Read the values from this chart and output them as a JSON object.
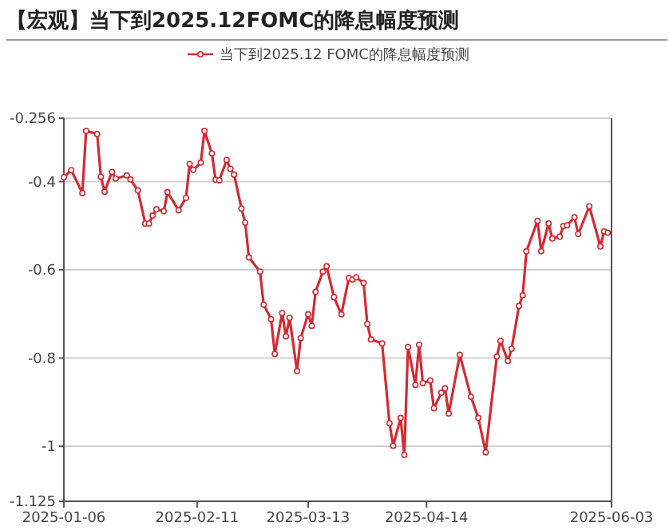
{
  "chart_data": {
    "type": "line",
    "title": "【宏观】当下到2025.12FOMC的降息幅度预测",
    "x": [
      "2025-01-06",
      "2025-01-08",
      "2025-01-11",
      "2025-01-12",
      "2025-01-15",
      "2025-01-16",
      "2025-01-17",
      "2025-01-19",
      "2025-01-20",
      "2025-01-23",
      "2025-01-24",
      "2025-01-26",
      "2025-01-28",
      "2025-01-29",
      "2025-01-30",
      "2025-01-31",
      "2025-02-02",
      "2025-02-03",
      "2025-02-06",
      "2025-02-08",
      "2025-02-09",
      "2025-02-10",
      "2025-02-12",
      "2025-02-13",
      "2025-02-15",
      "2025-02-16",
      "2025-02-17",
      "2025-02-19",
      "2025-02-20",
      "2025-02-21",
      "2025-02-23",
      "2025-02-24",
      "2025-02-25",
      "2025-02-28",
      "2025-03-01",
      "2025-03-03",
      "2025-03-04",
      "2025-03-06",
      "2025-03-07",
      "2025-03-08",
      "2025-03-10",
      "2025-03-11",
      "2025-03-13",
      "2025-03-14",
      "2025-03-15",
      "2025-03-17",
      "2025-03-18",
      "2025-03-20",
      "2025-03-22",
      "2025-03-24",
      "2025-03-25",
      "2025-03-26",
      "2025-03-28",
      "2025-03-29",
      "2025-03-30",
      "2025-04-02",
      "2025-04-04",
      "2025-04-05",
      "2025-04-07",
      "2025-04-08",
      "2025-04-09",
      "2025-04-11",
      "2025-04-12",
      "2025-04-13",
      "2025-04-15",
      "2025-04-16",
      "2025-04-18",
      "2025-04-19",
      "2025-04-20",
      "2025-04-23",
      "2025-04-26",
      "2025-04-28",
      "2025-04-30",
      "2025-05-03",
      "2025-05-04",
      "2025-05-06",
      "2025-05-07",
      "2025-05-09",
      "2025-05-10",
      "2025-05-11",
      "2025-05-14",
      "2025-05-15",
      "2025-05-17",
      "2025-05-18",
      "2025-05-20",
      "2025-05-21",
      "2025-05-22",
      "2025-05-24",
      "2025-05-25",
      "2025-05-28",
      "2025-05-31",
      "2025-06-01",
      "2025-06-02"
    ],
    "series": [
      {
        "name": "当下到2025.12 FOMC的降息幅度预测",
        "color": "#d42a32",
        "values": [
          -0.39,
          -0.374,
          -0.426,
          -0.285,
          -0.292,
          -0.389,
          -0.423,
          -0.378,
          -0.393,
          -0.386,
          -0.395,
          -0.42,
          -0.495,
          -0.495,
          -0.477,
          -0.463,
          -0.467,
          -0.424,
          -0.465,
          -0.437,
          -0.36,
          -0.373,
          -0.357,
          -0.285,
          -0.336,
          -0.396,
          -0.397,
          -0.351,
          -0.371,
          -0.384,
          -0.461,
          -0.493,
          -0.572,
          -0.604,
          -0.679,
          -0.712,
          -0.791,
          -0.698,
          -0.751,
          -0.709,
          -0.83,
          -0.755,
          -0.701,
          -0.727,
          -0.65,
          -0.604,
          -0.592,
          -0.662,
          -0.701,
          -0.619,
          -0.622,
          -0.617,
          -0.63,
          -0.723,
          -0.758,
          -0.767,
          -0.948,
          -0.999,
          -0.936,
          -1.02,
          -0.775,
          -0.861,
          -0.77,
          -0.857,
          -0.851,
          -0.914,
          -0.879,
          -0.869,
          -0.926,
          -0.793,
          -0.888,
          -0.936,
          -1.014,
          -0.797,
          -0.761,
          -0.807,
          -0.779,
          -0.682,
          -0.658,
          -0.558,
          -0.489,
          -0.558,
          -0.495,
          -0.529,
          -0.525,
          -0.501,
          -0.499,
          -0.481,
          -0.519,
          -0.456,
          -0.547,
          -0.513,
          -0.516
        ]
      }
    ],
    "xlim": [
      "2025-01-06",
      "2025-06-03"
    ],
    "xticks": [
      {
        "value": "2025-01-06",
        "label": "2025-01-06"
      },
      {
        "value": "2025-02-11",
        "label": "2025-02-11"
      },
      {
        "value": "2025-03-13",
        "label": "2025-03-13"
      },
      {
        "value": "2025-04-14",
        "label": "2025-04-14"
      },
      {
        "value": "2025-06-03",
        "label": "2025-06-03"
      }
    ],
    "ylim": [
      -1.125,
      -0.256
    ],
    "yticks": [
      -1.125,
      -1,
      -0.8,
      -0.6,
      -0.4,
      -0.256
    ],
    "grid": "y",
    "legend": "top",
    "marker": "circle",
    "line_style": "solid"
  }
}
